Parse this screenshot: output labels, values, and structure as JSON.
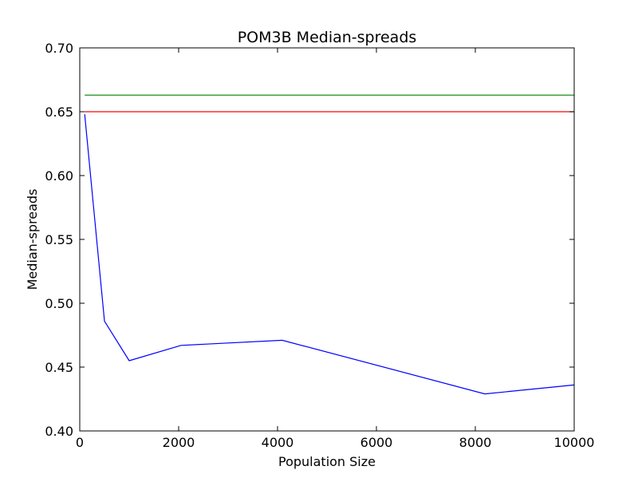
{
  "chart_data": {
    "type": "line",
    "title": "POM3B Median-spreads",
    "xlabel": "Population Size",
    "ylabel": "Median-spreads",
    "xlim": [
      0,
      10000
    ],
    "ylim": [
      0.4,
      0.7
    ],
    "xticks": [
      0,
      2000,
      4000,
      6000,
      8000,
      10000
    ],
    "xtick_labels": [
      "0",
      "2000",
      "4000",
      "6000",
      "8000",
      "10000"
    ],
    "yticks": [
      0.4,
      0.45,
      0.5,
      0.55,
      0.6,
      0.65,
      0.7
    ],
    "ytick_labels": [
      "0.40",
      "0.45",
      "0.50",
      "0.55",
      "0.60",
      "0.65",
      "0.70"
    ],
    "grid": false,
    "series": [
      {
        "color": "#0000ff",
        "x": [
          100,
          500,
          1000,
          2048,
          4096,
          8192,
          10000
        ],
        "y": [
          0.648,
          0.486,
          0.455,
          0.467,
          0.471,
          0.429,
          0.436
        ]
      },
      {
        "color": "#ff0000",
        "x": [
          100,
          10000
        ],
        "y": [
          0.65,
          0.65
        ]
      },
      {
        "color": "#008000",
        "x": [
          100,
          10000
        ],
        "y": [
          0.663,
          0.663
        ]
      }
    ]
  }
}
